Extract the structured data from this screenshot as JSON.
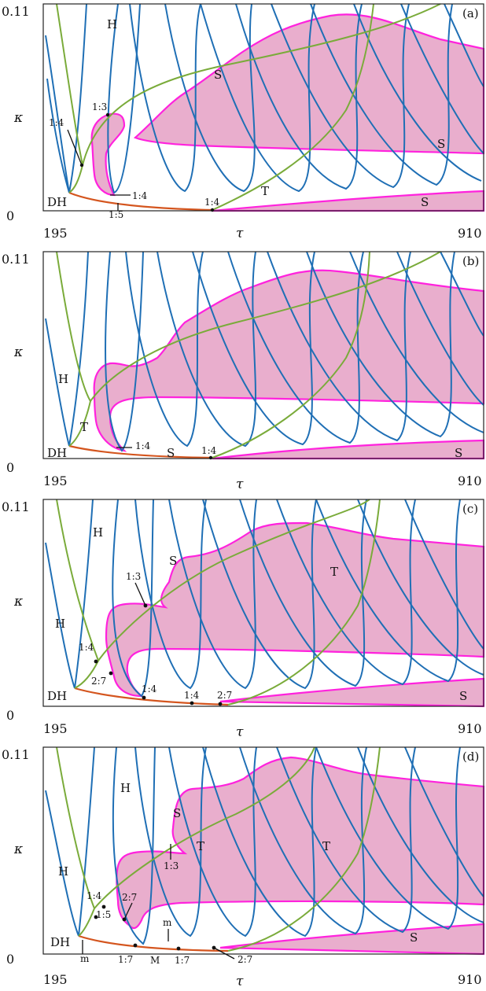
{
  "axes": {
    "y_top": "0.11",
    "y_bottom": "0",
    "y_label": "κ",
    "x_left": "195",
    "x_right": "910",
    "x_label": "τ"
  },
  "panels": [
    {
      "tag": "(a)",
      "labels": [
        "H",
        "S",
        "S",
        "S",
        "T",
        "DH",
        "1:3",
        "1:4",
        "1:4",
        "1:5",
        "1:4"
      ]
    },
    {
      "tag": "(b)",
      "labels": [
        "H",
        "T",
        "DH",
        "S",
        "S",
        "1:4",
        "1:4"
      ]
    },
    {
      "tag": "(c)",
      "labels": [
        "H",
        "H",
        "S",
        "T",
        "S",
        "DH",
        "1:3",
        "1:4",
        "2:7",
        "1:4",
        "1:4",
        "2:7"
      ]
    },
    {
      "tag": "(d)",
      "labels": [
        "H",
        "H",
        "S",
        "T",
        "T",
        "S",
        "DH",
        "1:3",
        "1:4",
        "1:5",
        "2:7",
        "m",
        "m",
        "M",
        "1:7",
        "1:7",
        "2:7"
      ]
    }
  ],
  "colors": {
    "hopf_curves": "#1f6fb5",
    "torus_curves": "#7aab3a",
    "region_fill": "#e9aecd",
    "region_edge": "#ff22dd",
    "base_curve": "#d4551e"
  }
}
